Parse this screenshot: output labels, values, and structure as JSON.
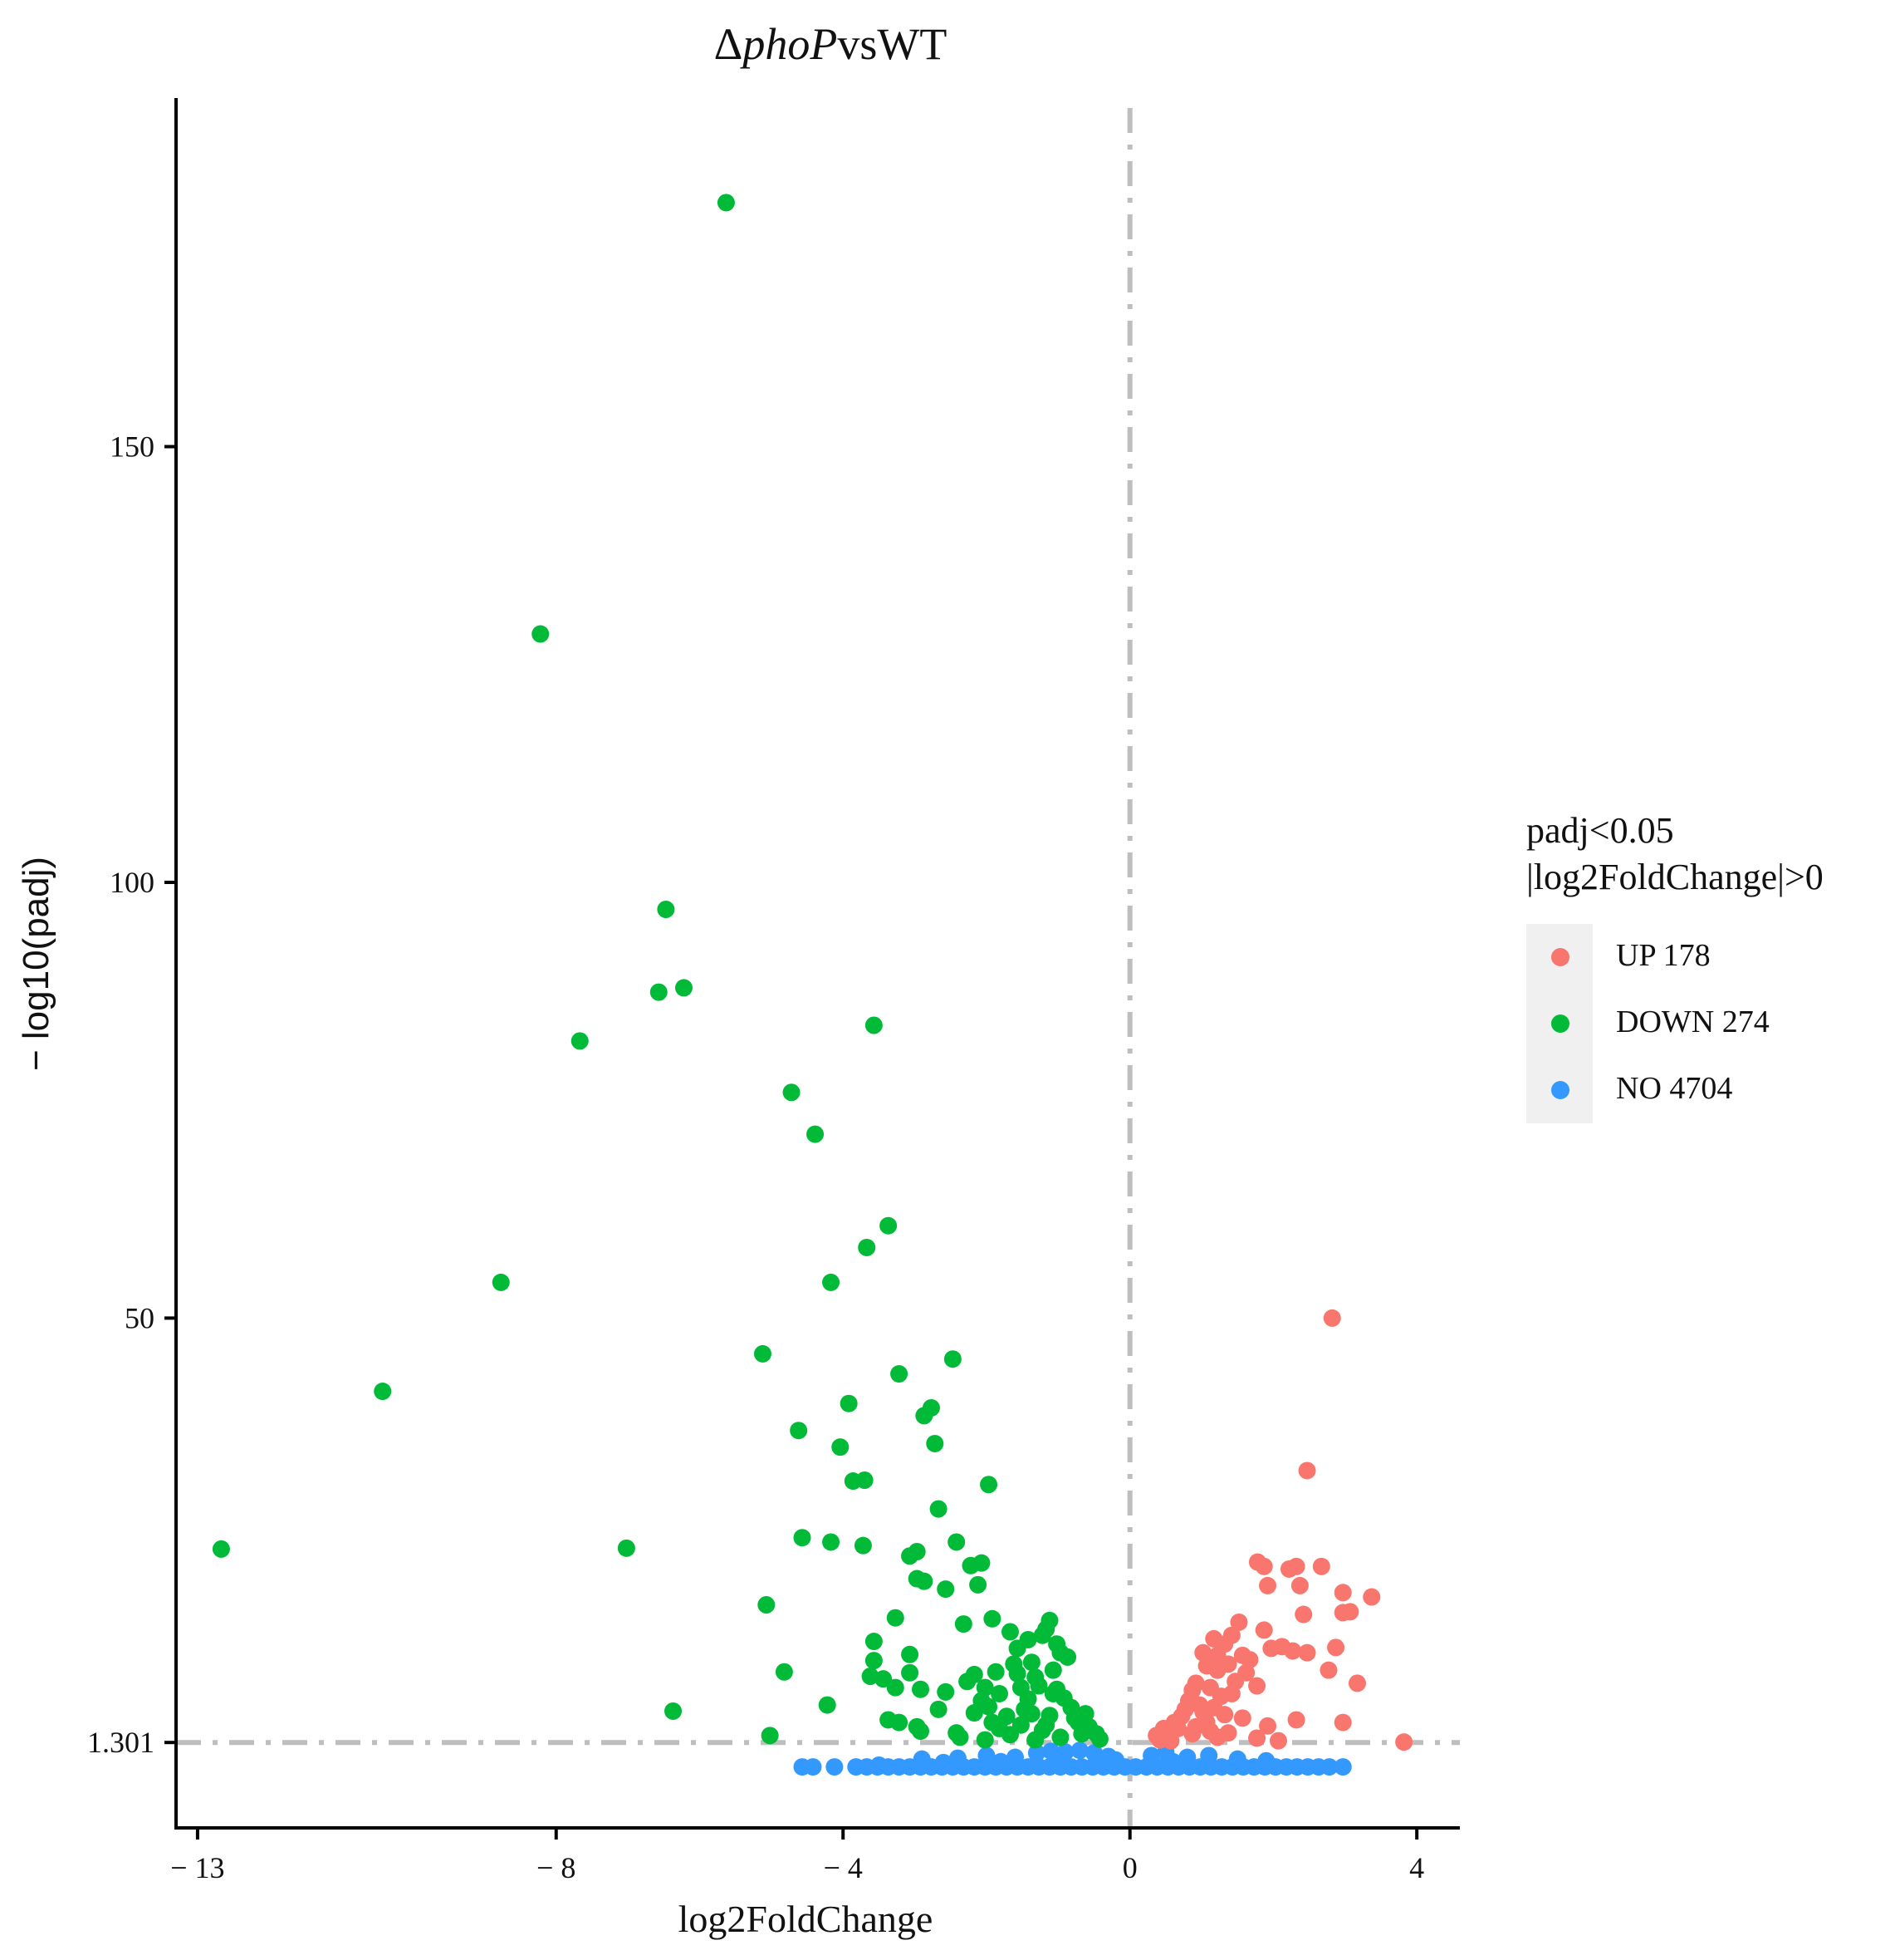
{
  "title": {
    "prefix": "Δ",
    "italic": "phoP",
    "suffix": "vsWT"
  },
  "legend": {
    "title_line1": "padj<0.05",
    "title_line2": "|log2FoldChange|>0",
    "items": [
      {
        "label": "UP 178",
        "color": "#F8766D"
      },
      {
        "label": "DOWN 274",
        "color": "#00BA38"
      },
      {
        "label": "NO 4704",
        "color": "#3399FF"
      }
    ]
  },
  "colors": {
    "up": "#F8766D",
    "down": "#00BA38",
    "no": "#3399FF",
    "threshold": "#BEBEBE"
  },
  "chart_data": {
    "type": "scatter",
    "title": "ΔphoPvsWT",
    "xlabel": "log2FoldChange",
    "ylabel": "− log10(padj)",
    "xlim": [
      -13.3,
      4.6
    ],
    "ylim": [
      -8.5,
      190
    ],
    "x_ticks": [
      -13,
      -8,
      -4,
      0,
      4
    ],
    "x_tick_labels": [
      "− 13",
      "− 8",
      "− 4",
      "0",
      "4"
    ],
    "y_ticks": [
      1.301,
      50,
      100,
      150
    ],
    "y_tick_labels": [
      "1.301",
      "50",
      "100",
      "150"
    ],
    "threshold_x": 0,
    "threshold_y": 1.301,
    "series": [
      {
        "name": "UP 178",
        "color": "#F8766D",
        "points": [
          [
            2.82,
            50
          ],
          [
            2.47,
            32.5
          ],
          [
            1.78,
            22
          ],
          [
            1.87,
            21.5
          ],
          [
            2.22,
            21.2
          ],
          [
            2.32,
            21.5
          ],
          [
            2.67,
            21.5
          ],
          [
            1.92,
            19.3
          ],
          [
            2.37,
            19.3
          ],
          [
            2.97,
            18.5
          ],
          [
            3.37,
            18
          ],
          [
            2.97,
            16.2
          ],
          [
            3.07,
            16.3
          ],
          [
            2.42,
            16
          ],
          [
            1.52,
            15.1
          ],
          [
            1.87,
            14.2
          ],
          [
            1.42,
            13.6
          ],
          [
            1.17,
            13.2
          ],
          [
            1.32,
            12.6
          ],
          [
            2.12,
            12.3
          ],
          [
            2.27,
            11.8
          ],
          [
            2.87,
            12.2
          ],
          [
            1.97,
            12.1
          ],
          [
            1.02,
            11.6
          ],
          [
            1.22,
            11.3
          ],
          [
            1.57,
            11.3
          ],
          [
            2.47,
            11.6
          ],
          [
            1.07,
            10.1
          ],
          [
            1.37,
            10.3
          ],
          [
            1.67,
            10.8
          ],
          [
            2.77,
            9.6
          ],
          [
            3.17,
            8.1
          ],
          [
            1.77,
            7.8
          ],
          [
            0.92,
            8.1
          ],
          [
            1.47,
            8.3
          ],
          [
            1.12,
            7.6
          ],
          [
            0.87,
            7.3
          ],
          [
            1.27,
            6.6
          ],
          [
            0.82,
            6.1
          ],
          [
            0.97,
            5.6
          ],
          [
            1.02,
            4.8
          ],
          [
            0.77,
            5.1
          ],
          [
            1.57,
            4.1
          ],
          [
            2.32,
            3.9
          ],
          [
            2.97,
            3.6
          ],
          [
            0.72,
            4.3
          ],
          [
            0.62,
            3.6
          ],
          [
            0.67,
            2.9
          ],
          [
            0.52,
            2.4
          ],
          [
            0.47,
            2.9
          ],
          [
            0.37,
            2.1
          ],
          [
            0.42,
            1.6
          ],
          [
            1.77,
            1.8
          ],
          [
            2.07,
            1.5
          ],
          [
            1.92,
            3.2
          ],
          [
            1.07,
            3.6
          ],
          [
            1.32,
            4.5
          ],
          [
            1.42,
            6.9
          ],
          [
            1.62,
            9.3
          ],
          [
            1.22,
            9.6
          ],
          [
            3.82,
            1.35
          ],
          [
            0.87,
            2.3
          ],
          [
            1.12,
            2.6
          ],
          [
            1.22,
            1.9
          ],
          [
            0.57,
            1.5
          ],
          [
            0.92,
            3.1
          ],
          [
            1.17,
            5.3
          ],
          [
            1.37,
            2.4
          ]
        ]
      },
      {
        "name": "DOWN 274",
        "color": "#00BA38",
        "points": [
          [
            -5.63,
            178
          ],
          [
            -8.22,
            128.5
          ],
          [
            -6.47,
            96.9
          ],
          [
            -6.22,
            87.9
          ],
          [
            -6.57,
            87.4
          ],
          [
            -3.57,
            83.6
          ],
          [
            -7.67,
            81.8
          ],
          [
            -4.72,
            75.9
          ],
          [
            -4.39,
            71.1
          ],
          [
            -3.37,
            60.6
          ],
          [
            -3.67,
            58.1
          ],
          [
            -8.77,
            54.1
          ],
          [
            -4.17,
            54.1
          ],
          [
            -5.12,
            45.9
          ],
          [
            -2.47,
            45.3
          ],
          [
            -3.22,
            43.6
          ],
          [
            -2.77,
            39.7
          ],
          [
            -2.87,
            38.8
          ],
          [
            -3.92,
            40.2
          ],
          [
            -4.62,
            37.1
          ],
          [
            -4.04,
            35.2
          ],
          [
            -2.72,
            35.6
          ],
          [
            -3.86,
            31.3
          ],
          [
            -3.7,
            31.4
          ],
          [
            -1.97,
            30.9
          ],
          [
            -10.42,
            41.6
          ],
          [
            -2.67,
            28.1
          ],
          [
            -4.57,
            24.8
          ],
          [
            -4.17,
            24.3
          ],
          [
            -3.72,
            23.9
          ],
          [
            -12.67,
            23.5
          ],
          [
            -7.02,
            23.6
          ],
          [
            -2.42,
            24.3
          ],
          [
            -3.07,
            22.7
          ],
          [
            -2.97,
            23.2
          ],
          [
            -2.22,
            21.6
          ],
          [
            -2.07,
            21.9
          ],
          [
            -2.97,
            20.1
          ],
          [
            -2.12,
            19.4
          ],
          [
            -2.57,
            18.9
          ],
          [
            -2.87,
            19.8
          ],
          [
            -5.07,
            17.1
          ],
          [
            -3.27,
            15.6
          ],
          [
            -1.92,
            15.5
          ],
          [
            -1.12,
            15.3
          ],
          [
            -2.32,
            14.9
          ],
          [
            -1.17,
            14.3
          ],
          [
            -1.67,
            14.0
          ],
          [
            -3.57,
            12.9
          ],
          [
            -1.22,
            13.6
          ],
          [
            -1.42,
            13.1
          ],
          [
            -1.02,
            12.6
          ],
          [
            -1.57,
            12.1
          ],
          [
            -3.07,
            11.4
          ],
          [
            -3.57,
            10.7
          ],
          [
            -1.37,
            10.5
          ],
          [
            -0.87,
            11.1
          ],
          [
            -1.07,
            9.6
          ],
          [
            -4.82,
            9.4
          ],
          [
            -3.07,
            9.3
          ],
          [
            -2.17,
            9.1
          ],
          [
            -1.57,
            9.2
          ],
          [
            -1.87,
            9.4
          ],
          [
            -3.44,
            8.6
          ],
          [
            -3.62,
            8.9
          ],
          [
            -2.27,
            8.3
          ],
          [
            -2.02,
            7.6
          ],
          [
            -1.52,
            7.6
          ],
          [
            -1.82,
            6.9
          ],
          [
            -2.57,
            7.1
          ],
          [
            -3.27,
            7.6
          ],
          [
            -2.92,
            7.4
          ],
          [
            -1.27,
            7.8
          ],
          [
            -1.02,
            7.4
          ],
          [
            -0.92,
            6.4
          ],
          [
            -1.42,
            6.3
          ],
          [
            -2.07,
            6.1
          ],
          [
            -2.67,
            5.1
          ],
          [
            -4.22,
            5.6
          ],
          [
            -6.37,
            4.9
          ],
          [
            -2.17,
            4.7
          ],
          [
            -1.72,
            4.3
          ],
          [
            -1.12,
            4.4
          ],
          [
            -0.77,
            4.1
          ],
          [
            -3.22,
            3.6
          ],
          [
            -3.37,
            3.9
          ],
          [
            -2.92,
            2.6
          ],
          [
            -2.97,
            3.1
          ],
          [
            -5.02,
            2.1
          ],
          [
            -2.37,
            1.9
          ],
          [
            -2.02,
            1.6
          ],
          [
            -1.67,
            2.2
          ],
          [
            -1.32,
            1.6
          ],
          [
            -0.97,
            1.9
          ],
          [
            -0.67,
            2.3
          ],
          [
            -0.57,
            3.1
          ],
          [
            -1.82,
            2.9
          ],
          [
            -1.22,
            2.7
          ],
          [
            -0.82,
            5.3
          ],
          [
            -1.47,
            5.1
          ],
          [
            -1.97,
            5.4
          ],
          [
            -1.62,
            10.3
          ],
          [
            -1.32,
            8.8
          ],
          [
            -0.72,
            3.6
          ],
          [
            -1.52,
            3.3
          ],
          [
            -0.47,
            2.3
          ],
          [
            -0.42,
            1.7
          ],
          [
            -1.07,
            6.9
          ],
          [
            -1.37,
            4.6
          ],
          [
            -2.42,
            2.4
          ],
          [
            -1.92,
            3.6
          ],
          [
            -0.62,
            4.6
          ],
          [
            -1.17,
            3.3
          ],
          [
            -0.97,
            11.6
          ]
        ]
      },
      {
        "name": "NO 4704",
        "color": "#3399FF",
        "points": [
          [
            -4.57,
            -1.5
          ],
          [
            -4.42,
            -1.5
          ],
          [
            -4.12,
            -1.5
          ],
          [
            -3.82,
            -1.5
          ],
          [
            -3.67,
            -1.5
          ],
          [
            -3.52,
            -1.5
          ],
          [
            -3.37,
            -1.5
          ],
          [
            -3.22,
            -1.5
          ],
          [
            -3.07,
            -1.5
          ],
          [
            -2.92,
            -1.5
          ],
          [
            -2.77,
            -1.5
          ],
          [
            -2.62,
            -1.5
          ],
          [
            -2.47,
            -1.5
          ],
          [
            -2.32,
            -1.5
          ],
          [
            -2.17,
            -1.5
          ],
          [
            -2.02,
            -1.5
          ],
          [
            -1.87,
            -1.5
          ],
          [
            -1.72,
            -1.5
          ],
          [
            -1.57,
            -1.5
          ],
          [
            -1.42,
            -1.5
          ],
          [
            -1.27,
            -1.5
          ],
          [
            -1.12,
            -1.5
          ],
          [
            -0.97,
            -1.5
          ],
          [
            -0.82,
            -1.5
          ],
          [
            -0.67,
            -1.5
          ],
          [
            -0.52,
            -1.5
          ],
          [
            -0.37,
            -1.5
          ],
          [
            -0.22,
            -1.5
          ],
          [
            -0.07,
            -1.5
          ],
          [
            0.08,
            -1.5
          ],
          [
            0.23,
            -1.5
          ],
          [
            0.38,
            -1.5
          ],
          [
            0.53,
            -1.5
          ],
          [
            0.68,
            -1.5
          ],
          [
            0.83,
            -1.5
          ],
          [
            0.98,
            -1.5
          ],
          [
            1.13,
            -1.5
          ],
          [
            1.28,
            -1.5
          ],
          [
            1.43,
            -1.5
          ],
          [
            1.58,
            -1.5
          ],
          [
            1.73,
            -1.5
          ],
          [
            1.88,
            -1.5
          ],
          [
            2.03,
            -1.5
          ],
          [
            2.18,
            -1.5
          ],
          [
            2.33,
            -1.5
          ],
          [
            2.48,
            -1.5
          ],
          [
            2.63,
            -1.5
          ],
          [
            2.78,
            -1.5
          ],
          [
            2.97,
            -1.5
          ],
          [
            -2.9,
            -0.6
          ],
          [
            -2.4,
            -0.5
          ],
          [
            -2.0,
            -0.2
          ],
          [
            -1.6,
            -0.4
          ],
          [
            -1.3,
            0.1
          ],
          [
            -1.1,
            0.3
          ],
          [
            -0.9,
            0.2
          ],
          [
            -0.7,
            0.4
          ],
          [
            -0.5,
            0.1
          ],
          [
            -0.3,
            -0.3
          ],
          [
            0.3,
            -0.2
          ],
          [
            0.5,
            0.2
          ],
          [
            0.8,
            -0.4
          ],
          [
            1.1,
            -0.2
          ],
          [
            1.5,
            -0.6
          ],
          [
            1.9,
            -0.8
          ],
          [
            -1.8,
            -0.9
          ],
          [
            -2.6,
            -1.0
          ],
          [
            0.6,
            -0.9
          ],
          [
            -0.2,
            -0.7
          ],
          [
            -3.5,
            -1.3
          ],
          [
            -1.0,
            -0.8
          ]
        ]
      }
    ]
  }
}
